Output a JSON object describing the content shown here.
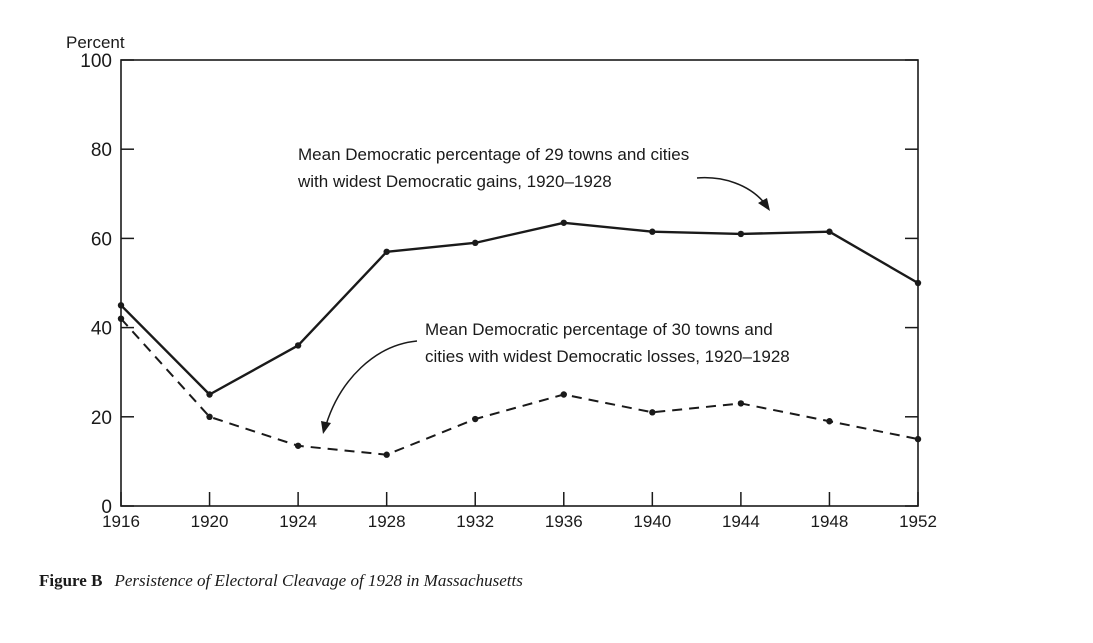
{
  "chart_data": {
    "type": "line",
    "ylabel": "Percent",
    "ylim": [
      0,
      100
    ],
    "y_ticks": [
      0,
      20,
      40,
      60,
      80,
      100
    ],
    "x": [
      "1916",
      "1920",
      "1924",
      "1928",
      "1932",
      "1936",
      "1940",
      "1944",
      "1948",
      "1952"
    ],
    "series": [
      {
        "name": "gains",
        "style": "solid",
        "values": [
          45,
          25,
          36,
          57,
          59,
          63.5,
          61.5,
          61,
          61.5,
          50
        ],
        "annotation": [
          "Mean Democratic percentage of 29 towns and cities",
          "with widest Democratic gains, 1920–1928"
        ]
      },
      {
        "name": "losses",
        "style": "dashed",
        "values": [
          42,
          20,
          13.5,
          11.5,
          19.5,
          25,
          21,
          23,
          19,
          15
        ],
        "annotation": [
          "Mean Democratic percentage of 30 towns and",
          "cities with widest Democratic losses, 1920–1928"
        ]
      }
    ],
    "grid": false,
    "colors": {
      "line": "#1a1a1a",
      "axis": "#1a1a1a"
    }
  },
  "caption": {
    "label": "Figure B",
    "title": "Persistence of Electoral Cleavage of 1928 in Massachusetts"
  }
}
